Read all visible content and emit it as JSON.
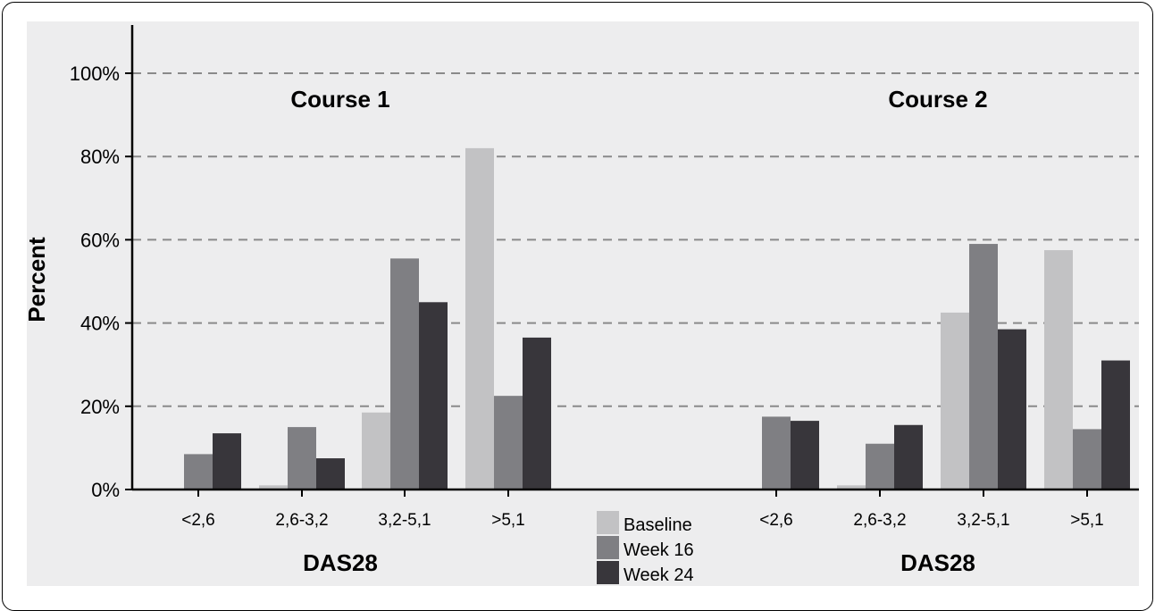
{
  "chart_data": {
    "type": "bar",
    "ylabel": "Percent",
    "ylim": [
      0,
      100
    ],
    "yticks": [
      "0%",
      "20%",
      "40%",
      "60%",
      "80%",
      "100%"
    ],
    "grid": true,
    "legend_position": "bottom-center",
    "series": [
      {
        "name": "Baseline",
        "color": "#c2c2c4"
      },
      {
        "name": "Week 16",
        "color": "#7f7f83"
      },
      {
        "name": "Week 24",
        "color": "#38363b"
      }
    ],
    "panels": [
      {
        "title": "Course 1",
        "xlabel": "DAS28",
        "categories": [
          "<2,6",
          "2,6-3,2",
          "3,2-5,1",
          ">5,1"
        ],
        "values": {
          "Baseline": [
            0,
            1,
            18.5,
            82
          ],
          "Week 16": [
            8.5,
            15,
            55.5,
            22.5
          ],
          "Week 24": [
            13.5,
            7.5,
            45,
            36.5
          ]
        }
      },
      {
        "title": "Course 2",
        "xlabel": "DAS28",
        "categories": [
          "<2,6",
          "2,6-3,2",
          "3,2-5,1",
          ">5,1"
        ],
        "values": {
          "Baseline": [
            0,
            1,
            42.5,
            57.5
          ],
          "Week 16": [
            17.5,
            11,
            59,
            14.5
          ],
          "Week 24": [
            16.5,
            15.5,
            38.5,
            31
          ]
        }
      }
    ]
  }
}
